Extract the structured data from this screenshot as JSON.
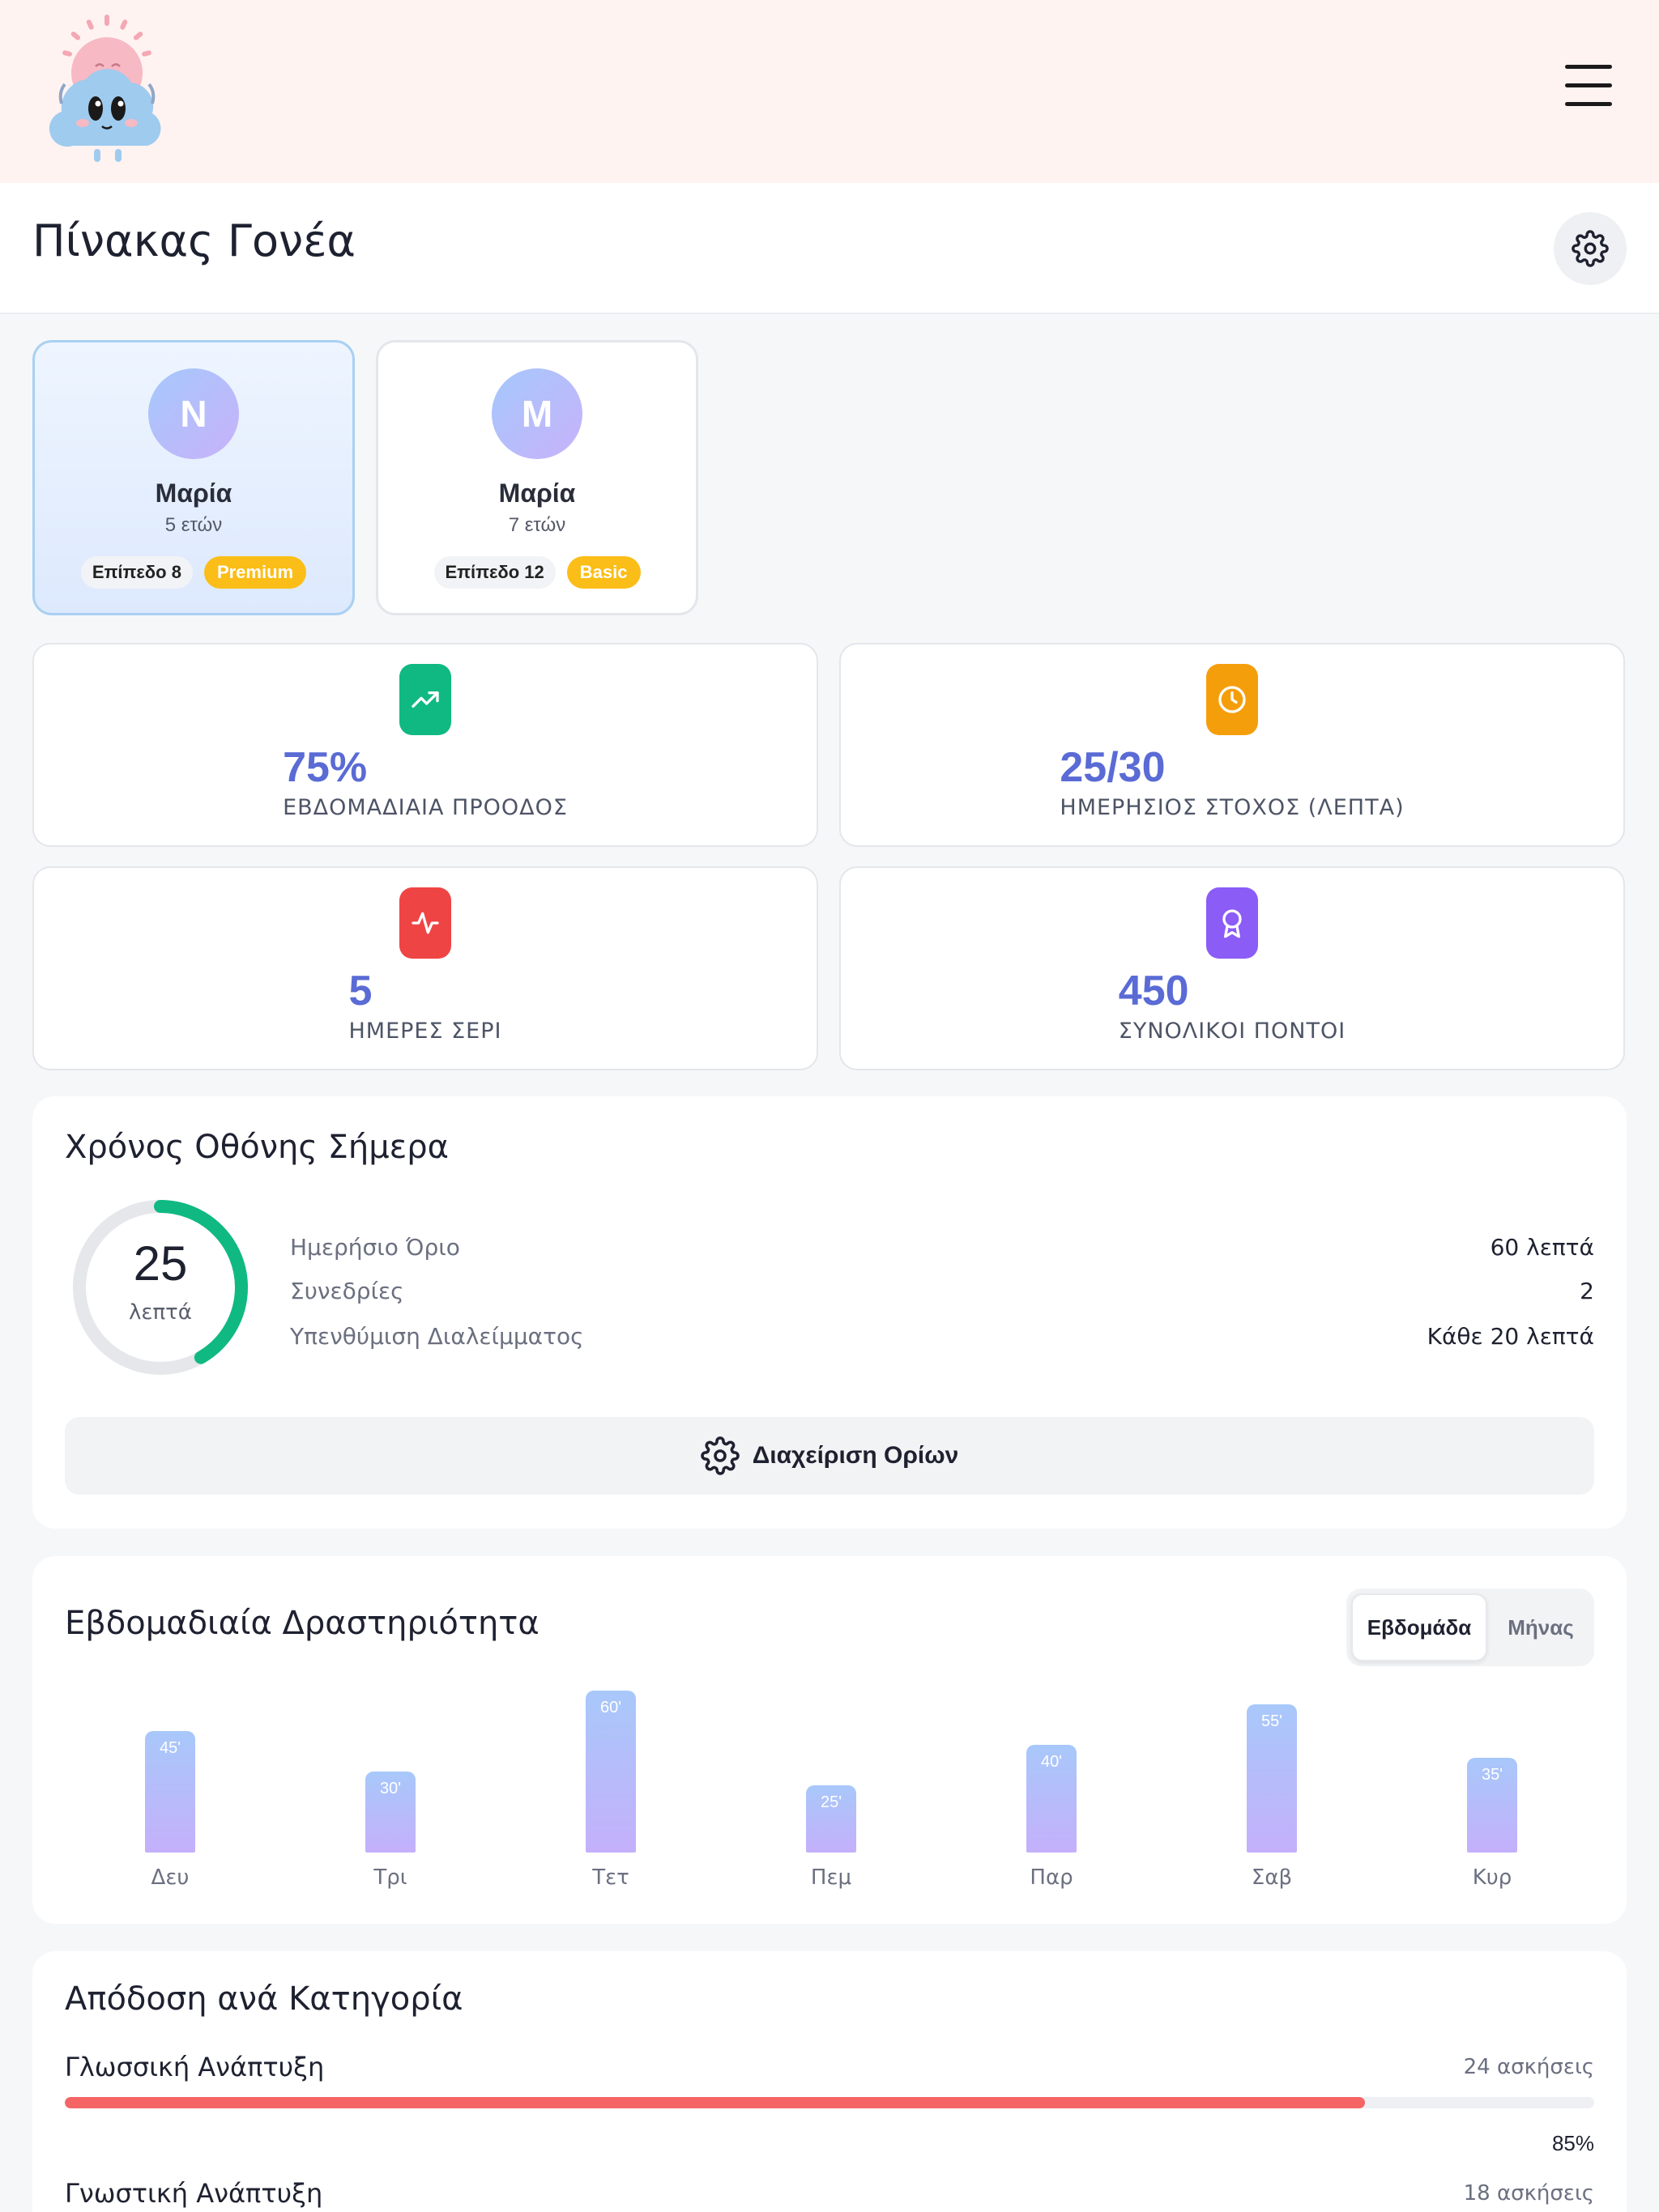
{
  "header": {
    "title": "Πίνακας Γονέα"
  },
  "children": [
    {
      "initial": "N",
      "name": "Μαρία",
      "age": "5 ετών",
      "level": "Επίπεδο 8",
      "plan": "Premium",
      "active": true
    },
    {
      "initial": "M",
      "name": "Μαρία",
      "age": "7 ετών",
      "level": "Επίπεδο 12",
      "plan": "Basic",
      "active": false
    }
  ],
  "stats": [
    {
      "value": "75%",
      "label": "ΕΒΔΟΜΑΔΙΑΙΑ ΠΡΟΟΔΟΣ",
      "icon": "trending-up-icon",
      "color": "#10b981"
    },
    {
      "value": "25/30",
      "label": "ΗΜΕΡΗΣΙΟΣ ΣΤΟΧΟΣ (ΛΕΠΤΑ)",
      "icon": "clock-icon",
      "color": "#f59e0b"
    },
    {
      "value": "5",
      "label": "ΗΜΕΡΕΣ ΣΕΡΙ",
      "icon": "activity-icon",
      "color": "#ef4444"
    },
    {
      "value": "450",
      "label": "ΣΥΝΟΛΙΚΟΙ ΠΟΝΤΟΙ",
      "icon": "award-icon",
      "color": "#8b5cf6"
    }
  ],
  "screen_time": {
    "title": "Χρόνος Οθόνης Σήμερα",
    "minutes": "25",
    "unit": "λεπτά",
    "used_fraction": 0.4167,
    "rows": [
      {
        "label": "Ημερήσιο Όριο",
        "value": "60 λεπτά"
      },
      {
        "label": "Συνεδρίες",
        "value": "2"
      },
      {
        "label": "Υπενθύμιση Διαλείμματος",
        "value": "Κάθε 20 λεπτά"
      }
    ],
    "manage_label": "Διαχείριση Ορίων",
    "ring_color": "#10b981"
  },
  "weekly": {
    "title": "Εβδομαδιαία Δραστηριότητα",
    "toggle": {
      "week": "Εβδομάδα",
      "month": "Μήνας"
    }
  },
  "chart_data": {
    "type": "bar",
    "categories": [
      "Δευ",
      "Τρι",
      "Τετ",
      "Πεμ",
      "Παρ",
      "Σαβ",
      "Κυρ"
    ],
    "values": [
      45,
      30,
      60,
      25,
      40,
      55,
      35
    ],
    "value_labels": [
      "45'",
      "30'",
      "60'",
      "25'",
      "40'",
      "55'",
      "35'"
    ],
    "ylim": [
      0,
      60
    ]
  },
  "categories": {
    "title": "Απόδοση ανά Κατηγορία",
    "items": [
      {
        "name": "Γλωσσική Ανάπτυξη",
        "count": "24 ασκήσεις",
        "percent": "85%",
        "fraction": 0.85,
        "color": "#f56565"
      },
      {
        "name": "Γνωστική Ανάπτυξη",
        "count": "18 ασκήσεις"
      }
    ]
  }
}
